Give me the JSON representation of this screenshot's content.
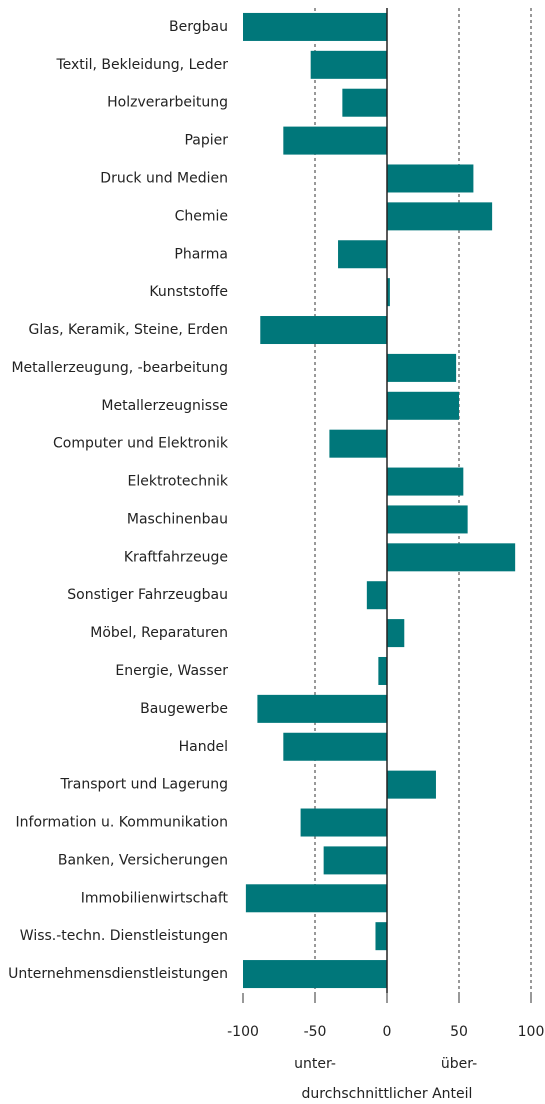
{
  "chart_data": {
    "type": "hbar",
    "categories": [
      "Bergbau",
      "Textil, Bekleidung, Leder",
      "Holzverarbeitung",
      "Papier",
      "Druck und Medien",
      "Chemie",
      "Pharma",
      "Kunststoffe",
      "Glas, Keramik, Steine, Erden",
      "Metallerzeugung, -bearbeitung",
      "Metallerzeugnisse",
      "Computer und Elektronik",
      "Elektrotechnik",
      "Maschinenbau",
      "Kraftfahrzeuge",
      "Sonstiger Fahrzeugbau",
      "Möbel, Reparaturen",
      "Energie, Wasser",
      "Baugewerbe",
      "Handel",
      "Transport und Lagerung",
      "Information u. Kommunikation",
      "Banken, Versicherungen",
      "Immobilienwirtschaft",
      "Wiss.-techn. Dienstleistungen",
      "Unternehmensdienstleistungen"
    ],
    "values": [
      -100,
      -53,
      -31,
      -72,
      60,
      73,
      -34,
      2,
      -88,
      48,
      50,
      -40,
      53,
      56,
      89,
      -14,
      12,
      -6,
      -90,
      -72,
      34,
      -60,
      -44,
      -98,
      -8,
      -100
    ],
    "color": "#00777a",
    "xlim": [
      -100,
      100
    ],
    "xticks": [
      -100,
      -50,
      0,
      50,
      100
    ],
    "grid": true,
    "annotations": [
      "unter-",
      "über-",
      "durchschnittlicher Anteil"
    ]
  }
}
